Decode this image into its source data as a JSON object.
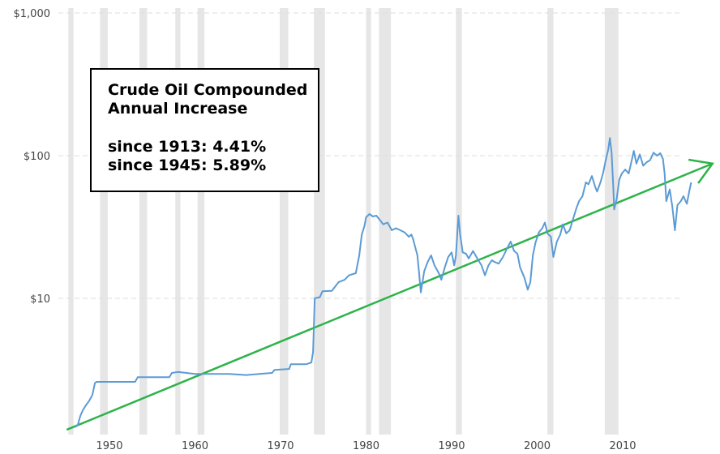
{
  "chart_data": {
    "type": "line",
    "title": "",
    "xlabel": "",
    "ylabel": "",
    "xlim": [
      1943.5,
      2018
    ],
    "ylim": [
      1.2,
      1000
    ],
    "y_scale": "log",
    "grid": "horizontal dashed",
    "x_ticks": [
      "1950",
      "1960",
      "1970",
      "1980",
      "1990",
      "2000",
      "2010"
    ],
    "x_tick_values": [
      1950,
      1960,
      1970,
      1980,
      1990,
      2000,
      2010
    ],
    "y_ticks": [
      "$1,000",
      "$100",
      "$10"
    ],
    "y_tick_values": [
      1000,
      100,
      10
    ],
    "recessions": [
      [
        1945.2,
        1945.8
      ],
      [
        1948.9,
        1949.8
      ],
      [
        1953.5,
        1954.4
      ],
      [
        1957.7,
        1958.3
      ],
      [
        1960.3,
        1961.1
      ],
      [
        1969.9,
        1970.9
      ],
      [
        1973.9,
        1975.2
      ],
      [
        1980.0,
        1980.5
      ],
      [
        1981.5,
        1982.9
      ],
      [
        1990.5,
        1991.2
      ],
      [
        2001.2,
        2001.9
      ],
      [
        2007.9,
        2009.5
      ]
    ],
    "series": [
      {
        "name": "",
        "color": "#5b9bd5",
        "points": [
          [
            1946.0,
            1.25
          ],
          [
            1946.3,
            1.3
          ],
          [
            1946.6,
            1.5
          ],
          [
            1946.9,
            1.65
          ],
          [
            1947.3,
            1.8
          ],
          [
            1947.6,
            1.9
          ],
          [
            1948.0,
            2.1
          ],
          [
            1948.3,
            2.55
          ],
          [
            1948.5,
            2.6
          ],
          [
            1949.0,
            2.6
          ],
          [
            1950.0,
            2.6
          ],
          [
            1952.0,
            2.6
          ],
          [
            1953.0,
            2.6
          ],
          [
            1953.3,
            2.8
          ],
          [
            1955.0,
            2.8
          ],
          [
            1957.0,
            2.8
          ],
          [
            1957.3,
            3.0
          ],
          [
            1958.0,
            3.05
          ],
          [
            1959.0,
            3.0
          ],
          [
            1960.0,
            2.95
          ],
          [
            1962.0,
            2.95
          ],
          [
            1964.0,
            2.95
          ],
          [
            1966.0,
            2.9
          ],
          [
            1967.5,
            2.95
          ],
          [
            1969.0,
            3.0
          ],
          [
            1969.3,
            3.15
          ],
          [
            1971.0,
            3.2
          ],
          [
            1971.2,
            3.45
          ],
          [
            1973.0,
            3.45
          ],
          [
            1973.6,
            3.55
          ],
          [
            1973.8,
            4.2
          ],
          [
            1974.0,
            10.0
          ],
          [
            1974.6,
            10.2
          ],
          [
            1974.9,
            11.2
          ],
          [
            1976.0,
            11.3
          ],
          [
            1976.8,
            13.0
          ],
          [
            1977.5,
            13.5
          ],
          [
            1978.0,
            14.5
          ],
          [
            1978.8,
            15.0
          ],
          [
            1979.2,
            20.0
          ],
          [
            1979.5,
            28.0
          ],
          [
            1979.8,
            32.0
          ],
          [
            1980.0,
            37.0
          ],
          [
            1980.4,
            39.0
          ],
          [
            1980.8,
            37.5
          ],
          [
            1981.2,
            38.0
          ],
          [
            1981.6,
            35.5
          ],
          [
            1982.0,
            33.0
          ],
          [
            1982.5,
            34.0
          ],
          [
            1983.0,
            30.0
          ],
          [
            1983.5,
            31.0
          ],
          [
            1984.0,
            30.0
          ],
          [
            1984.5,
            29.0
          ],
          [
            1985.0,
            27.0
          ],
          [
            1985.3,
            28.0
          ],
          [
            1985.5,
            26.0
          ],
          [
            1986.0,
            20.0
          ],
          [
            1986.2,
            15.0
          ],
          [
            1986.4,
            11.0
          ],
          [
            1986.6,
            13.0
          ],
          [
            1986.8,
            15.5
          ],
          [
            1987.2,
            18.0
          ],
          [
            1987.6,
            20.0
          ],
          [
            1988.0,
            17.0
          ],
          [
            1988.5,
            15.0
          ],
          [
            1988.8,
            13.5
          ],
          [
            1989.2,
            16.5
          ],
          [
            1989.6,
            19.5
          ],
          [
            1990.0,
            21.0
          ],
          [
            1990.3,
            17.0
          ],
          [
            1990.5,
            20.0
          ],
          [
            1990.8,
            38.0
          ],
          [
            1991.0,
            28.0
          ],
          [
            1991.3,
            21.0
          ],
          [
            1991.7,
            20.5
          ],
          [
            1992.0,
            19.0
          ],
          [
            1992.5,
            21.5
          ],
          [
            1993.0,
            19.0
          ],
          [
            1993.5,
            17.0
          ],
          [
            1993.9,
            14.5
          ],
          [
            1994.3,
            17.0
          ],
          [
            1994.7,
            18.5
          ],
          [
            1995.0,
            18.0
          ],
          [
            1995.5,
            17.5
          ],
          [
            1996.0,
            19.5
          ],
          [
            1996.5,
            22.5
          ],
          [
            1996.9,
            25.0
          ],
          [
            1997.3,
            21.5
          ],
          [
            1997.7,
            20.5
          ],
          [
            1998.0,
            16.5
          ],
          [
            1998.5,
            14.0
          ],
          [
            1998.9,
            11.5
          ],
          [
            1999.2,
            13.0
          ],
          [
            1999.5,
            20.0
          ],
          [
            1999.8,
            24.5
          ],
          [
            2000.2,
            29.0
          ],
          [
            2000.6,
            31.0
          ],
          [
            2000.9,
            34.0
          ],
          [
            2001.2,
            28.5
          ],
          [
            2001.6,
            27.0
          ],
          [
            2001.9,
            19.5
          ],
          [
            2002.3,
            25.0
          ],
          [
            2002.7,
            28.0
          ],
          [
            2003.0,
            33.0
          ],
          [
            2003.4,
            28.5
          ],
          [
            2003.8,
            30.0
          ],
          [
            2004.2,
            36.0
          ],
          [
            2004.6,
            43.0
          ],
          [
            2004.9,
            48.0
          ],
          [
            2005.3,
            52.0
          ],
          [
            2005.7,
            65.0
          ],
          [
            2006.0,
            63.0
          ],
          [
            2006.4,
            72.0
          ],
          [
            2006.8,
            60.0
          ],
          [
            2007.0,
            56.0
          ],
          [
            2007.4,
            65.0
          ],
          [
            2007.7,
            75.0
          ],
          [
            2008.0,
            92.0
          ],
          [
            2008.3,
            110.0
          ],
          [
            2008.5,
            133.0
          ],
          [
            2008.7,
            105.0
          ],
          [
            2008.9,
            60.0
          ],
          [
            2009.0,
            42.0
          ],
          [
            2009.3,
            50.0
          ],
          [
            2009.6,
            68.0
          ],
          [
            2009.9,
            75.0
          ],
          [
            2010.3,
            80.0
          ],
          [
            2010.7,
            75.0
          ],
          [
            2011.0,
            90.0
          ],
          [
            2011.3,
            108.0
          ],
          [
            2011.6,
            88.0
          ],
          [
            2012.0,
            102.0
          ],
          [
            2012.4,
            85.0
          ],
          [
            2012.8,
            90.0
          ],
          [
            2013.2,
            93.0
          ],
          [
            2013.6,
            105.0
          ],
          [
            2014.0,
            100.0
          ],
          [
            2014.4,
            104.0
          ],
          [
            2014.7,
            95.0
          ],
          [
            2014.9,
            75.0
          ],
          [
            2015.1,
            48.0
          ],
          [
            2015.5,
            58.0
          ],
          [
            2015.8,
            44.0
          ],
          [
            2016.1,
            30.0
          ],
          [
            2016.4,
            45.0
          ],
          [
            2016.8,
            48.0
          ],
          [
            2017.1,
            52.0
          ],
          [
            2017.5,
            46.0
          ],
          [
            2017.8,
            57.0
          ],
          [
            2018.0,
            65.0
          ]
        ]
      }
    ],
    "trend": {
      "color": "#2db34a",
      "start": [
        1945.0,
        1.2
      ],
      "end": [
        2020.5,
        88.0
      ]
    }
  },
  "annotation": {
    "title": "Crude Oil Compounded Annual Increase",
    "line1": "since 1913:  4.41%",
    "line2": "since 1945:  5.89%"
  }
}
